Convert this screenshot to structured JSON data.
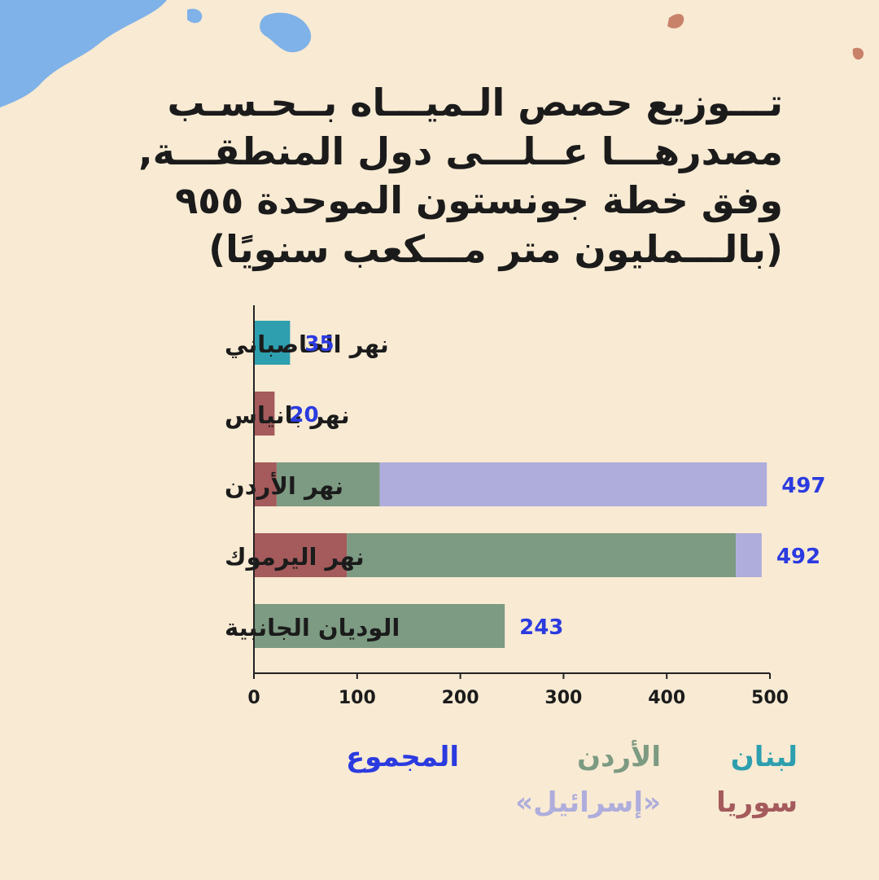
{
  "title_lines": [
    "تـــوزيع حصص الـميـــاه بــحـسـب",
    "مصدرهـــا عــلـــى دول المنطقـــة,",
    "وفق خطة جونستون الموحدة ٩٥٥",
    "(بالـــمليون متر مـــكعب سنويًا)"
  ],
  "colors": {
    "lebanon": "#2e9faf",
    "syria": "#a55a5c",
    "jordan": "#7d9a82",
    "israel": "#aeaddc",
    "total": "#2b3be0",
    "text": "#1b1b1b"
  },
  "legend": [
    {
      "label": "لبنان",
      "color": "#2e9faf"
    },
    {
      "label": "الأردن",
      "color": "#7d9a82"
    },
    {
      "label": "المجموع",
      "color": "#2b3be0"
    },
    {
      "label": "سوريا",
      "color": "#a55a5c"
    },
    {
      "label": "«إسرائيل»",
      "color": "#aeaddc"
    }
  ],
  "chart_data": {
    "type": "bar",
    "orientation": "horizontal",
    "stacked": true,
    "categories": [
      "نهر الحاصباني",
      "نهر بانياس",
      "نهر الأردن",
      "نهر اليرموك",
      "الوديان الجانبية"
    ],
    "series": [
      {
        "name": "لبنان",
        "values": [
          35,
          0,
          0,
          0,
          0
        ]
      },
      {
        "name": "سوريا",
        "values": [
          0,
          20,
          22,
          90,
          0
        ]
      },
      {
        "name": "الأردن",
        "values": [
          0,
          0,
          100,
          377,
          243
        ]
      },
      {
        "name": "«إسرائيل»",
        "values": [
          0,
          0,
          375,
          25,
          0
        ]
      }
    ],
    "totals": [
      35,
      20,
      497,
      492,
      243
    ],
    "xlim": [
      0,
      500
    ],
    "xticks": [
      0,
      100,
      200,
      300,
      400,
      500
    ],
    "grid": false,
    "legend_position": "bottom"
  }
}
